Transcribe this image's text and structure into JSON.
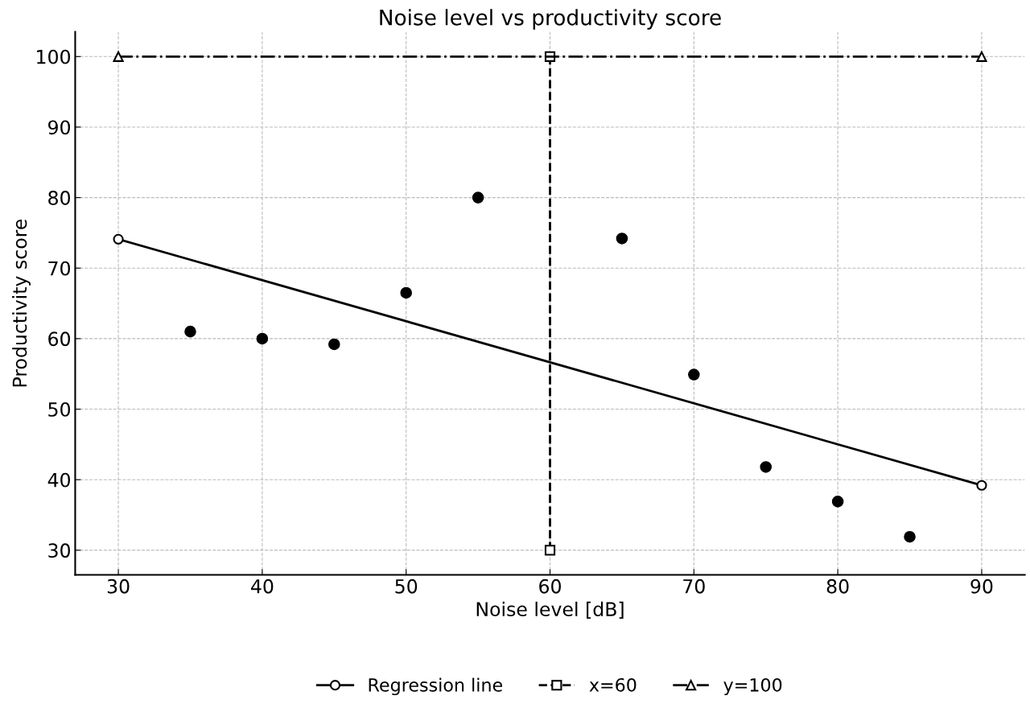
{
  "chart_data": {
    "type": "scatter",
    "title": "Noise level vs productivity score",
    "xlabel": "Noise level [dB]",
    "ylabel": "Productivity score",
    "xlim": [
      27,
      93
    ],
    "xticks": [
      30,
      40,
      50,
      60,
      70,
      80,
      90
    ],
    "ylim": [
      26.5,
      103.5
    ],
    "yticks": [
      30,
      40,
      50,
      60,
      70,
      80,
      90,
      100
    ],
    "grid": true,
    "legend": "bottom",
    "series": [
      {
        "color": "#000000",
        "marker": "circle",
        "x": [
          35,
          40,
          45,
          50,
          55,
          65,
          70,
          75,
          80,
          85
        ],
        "values": [
          61,
          60,
          59.2,
          66.5,
          80,
          74.2,
          54.9,
          41.8,
          36.9,
          31.9
        ]
      },
      {
        "type": "line",
        "name": "Regression line",
        "color": "#000000",
        "marker": "circle",
        "line_style": "solid",
        "x": [
          30,
          90
        ],
        "values": [
          74.1,
          39.2
        ]
      },
      {
        "type": "line",
        "name": "x=60",
        "color": "#000000",
        "marker": "square",
        "line_style": "dashed",
        "x": [
          60,
          60
        ],
        "values": [
          30,
          100
        ]
      },
      {
        "type": "line",
        "name": "y=100",
        "color": "#000000",
        "marker": "triangle",
        "line_style": "dashdot",
        "x": [
          30,
          90
        ],
        "values": [
          100,
          100
        ]
      }
    ]
  }
}
